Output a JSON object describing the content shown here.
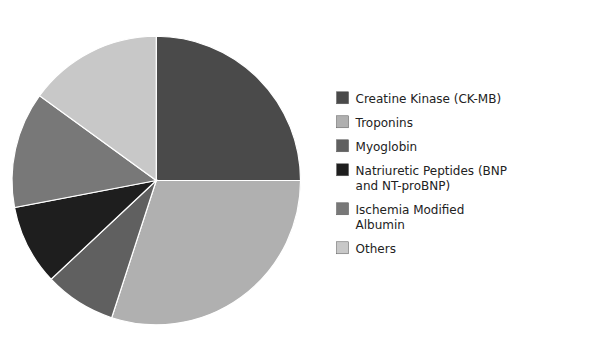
{
  "chart_data": {
    "type": "pie",
    "categories": [
      "Creatine Kinase (CK-MB)",
      "Troponins",
      "Myoglobin",
      "Natriuretic Peptides (BNP\nand NT-proBNP)",
      "Ischemia Modified\nAlbumin",
      "Others"
    ],
    "values": [
      25,
      30,
      8,
      9,
      13,
      15
    ],
    "colors": [
      "#4a4a4a",
      "#b0b0b0",
      "#606060",
      "#1e1e1e",
      "#787878",
      "#c8c8c8"
    ],
    "legend": "right"
  }
}
